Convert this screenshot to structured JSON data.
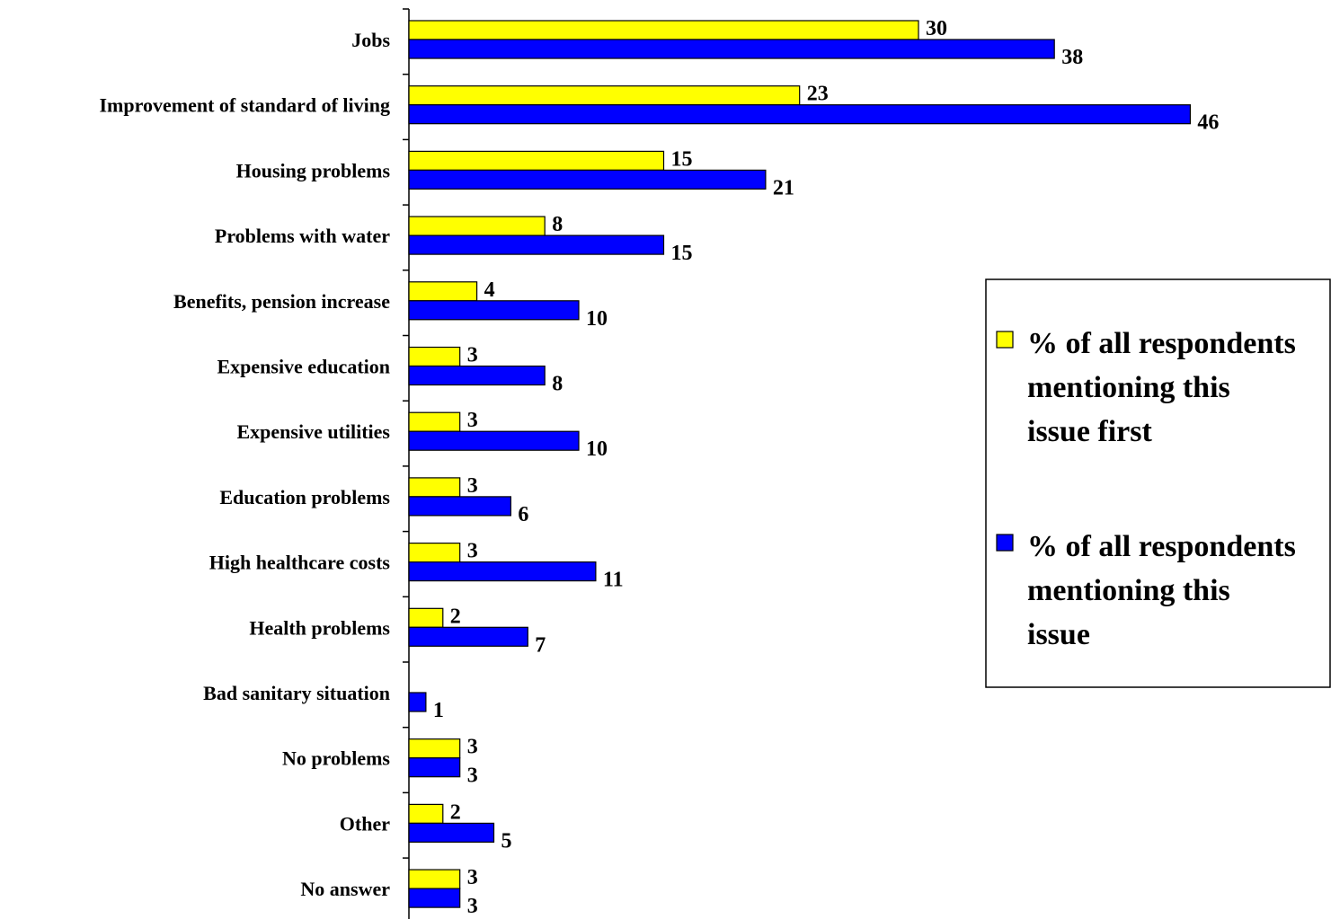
{
  "chart_data": {
    "type": "bar",
    "orientation": "horizontal",
    "categories": [
      "Jobs",
      "Improvement of standard of living",
      "Housing problems",
      "Problems with water",
      "Benefits, pension increase",
      "Expensive education",
      "Expensive utilities",
      "Education problems",
      "High healthcare costs",
      "Health problems",
      "Bad sanitary situation",
      "No problems",
      "Other",
      "No answer"
    ],
    "series": [
      {
        "name": "% of all respondents mentioning this issue first",
        "legend_lines": [
          "% of all respondents",
          "mentioning this",
          "issue first"
        ],
        "color": "#FFFF00",
        "values": [
          30,
          23,
          15,
          8,
          4,
          3,
          3,
          3,
          3,
          2,
          null,
          3,
          2,
          3
        ]
      },
      {
        "name": "% of all respondents mentioning this issue",
        "legend_lines": [
          "% of all respondents",
          "mentioning this",
          "issue"
        ],
        "color": "#0000FF",
        "values": [
          38,
          46,
          21,
          15,
          10,
          8,
          10,
          6,
          11,
          7,
          1,
          3,
          5,
          3
        ]
      }
    ],
    "title": "",
    "xlabel": "",
    "ylabel": "",
    "xlim": [
      0,
      50
    ],
    "grid": false,
    "legend_position": "right"
  }
}
